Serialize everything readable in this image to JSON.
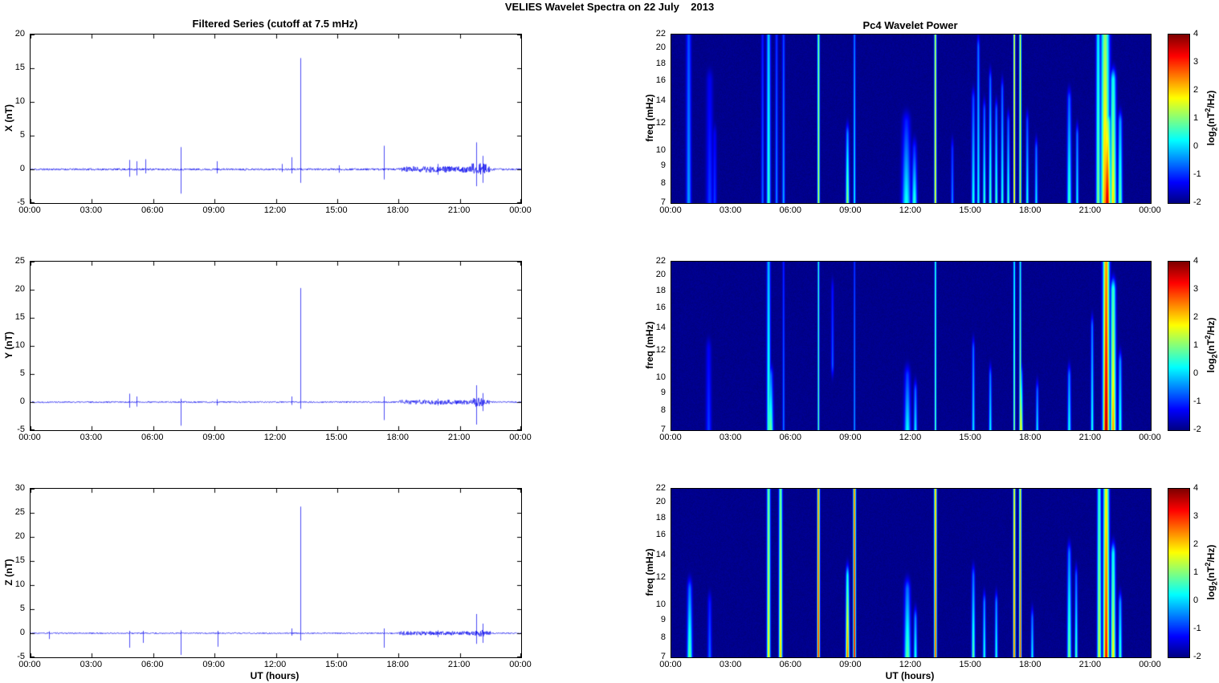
{
  "title": "VELIES Wavelet Spectra on 22 July    2013",
  "left_column": {
    "title": "Filtered Series (cutoff at 7.5 mHz)"
  },
  "right_column": {
    "title": "Pc4 Wavelet Power",
    "colorbar_label": {
      "prefix": "log",
      "sub": "2",
      "mid": "(nT",
      "sup": "2",
      "suffix": "/Hz)"
    }
  },
  "chart_data": [
    {
      "type": "line",
      "component": "X",
      "ylabel": "X (nT)",
      "line_color": "#0000ee",
      "xlim": [
        0,
        24
      ],
      "xticks": [
        "00:00",
        "03:00",
        "06:00",
        "09:00",
        "12:00",
        "15:00",
        "18:00",
        "21:00",
        "00:00"
      ],
      "ylim": [
        -5,
        20
      ],
      "yticks": [
        20,
        15,
        10,
        5,
        0,
        -5
      ],
      "baseline_noise_nT": 0.14,
      "noisy_segments": [
        {
          "start": 18.0,
          "end": 22.5,
          "amp": 0.45
        },
        {
          "start": 21.6,
          "end": 22.3,
          "amp": 0.9
        }
      ],
      "spikes": [
        {
          "t": 4.85,
          "up": 1.4,
          "down": -1.1
        },
        {
          "t": 5.2,
          "up": 1.2,
          "down": -0.9
        },
        {
          "t": 5.6,
          "up": 1.5,
          "down": -0.6
        },
        {
          "t": 7.35,
          "up": 3.3,
          "down": -3.6
        },
        {
          "t": 9.1,
          "up": 1.2,
          "down": -0.6
        },
        {
          "t": 12.3,
          "up": 0.8,
          "down": -0.4
        },
        {
          "t": 12.75,
          "up": 1.8,
          "down": -0.6
        },
        {
          "t": 13.2,
          "up": 16.5,
          "down": -2.0
        },
        {
          "t": 15.1,
          "up": 0.6,
          "down": -0.5
        },
        {
          "t": 17.3,
          "up": 3.5,
          "down": -1.5
        },
        {
          "t": 19.9,
          "up": 0.8,
          "down": -0.8
        },
        {
          "t": 21.8,
          "up": 4.0,
          "down": -2.5
        },
        {
          "t": 22.1,
          "up": 2.0,
          "down": -2.0
        }
      ],
      "seed": 11
    },
    {
      "type": "line",
      "component": "Y",
      "ylabel": "Y (nT)",
      "line_color": "#0000ee",
      "xlim": [
        0,
        24
      ],
      "xticks": [
        "00:00",
        "03:00",
        "06:00",
        "09:00",
        "12:00",
        "15:00",
        "18:00",
        "21:00",
        "00:00"
      ],
      "ylim": [
        -5,
        25
      ],
      "yticks": [
        25,
        20,
        15,
        10,
        5,
        0,
        -5
      ],
      "baseline_noise_nT": 0.12,
      "noisy_segments": [
        {
          "start": 18.0,
          "end": 22.5,
          "amp": 0.4
        },
        {
          "start": 21.6,
          "end": 22.3,
          "amp": 0.8
        }
      ],
      "spikes": [
        {
          "t": 4.85,
          "up": 1.5,
          "down": -1.0
        },
        {
          "t": 5.2,
          "up": 1.0,
          "down": -0.8
        },
        {
          "t": 7.35,
          "up": 0.6,
          "down": -4.2
        },
        {
          "t": 9.1,
          "up": 0.5,
          "down": -0.6
        },
        {
          "t": 12.75,
          "up": 1.0,
          "down": -0.5
        },
        {
          "t": 13.2,
          "up": 20.3,
          "down": -1.2
        },
        {
          "t": 17.3,
          "up": 1.0,
          "down": -3.2
        },
        {
          "t": 19.9,
          "up": 0.6,
          "down": -0.6
        },
        {
          "t": 21.8,
          "up": 3.0,
          "down": -4.0
        },
        {
          "t": 22.1,
          "up": 1.6,
          "down": -1.6
        }
      ],
      "seed": 22
    },
    {
      "type": "line",
      "component": "Z",
      "ylabel": "Z (nT)",
      "xlabel": "UT (hours)",
      "line_color": "#0000ee",
      "xlim": [
        0,
        24
      ],
      "xticks": [
        "00:00",
        "03:00",
        "06:00",
        "09:00",
        "12:00",
        "15:00",
        "18:00",
        "21:00",
        "00:00"
      ],
      "ylim": [
        -5,
        30
      ],
      "yticks": [
        30,
        25,
        20,
        15,
        10,
        5,
        0,
        -5
      ],
      "baseline_noise_nT": 0.12,
      "noisy_segments": [
        {
          "start": 18.0,
          "end": 22.5,
          "amp": 0.4
        },
        {
          "start": 21.7,
          "end": 22.2,
          "amp": 0.7
        }
      ],
      "spikes": [
        {
          "t": 0.9,
          "up": 0.4,
          "down": -1.2
        },
        {
          "t": 4.85,
          "up": 0.5,
          "down": -3.0
        },
        {
          "t": 5.5,
          "up": 0.5,
          "down": -2.0
        },
        {
          "t": 7.35,
          "up": 0.6,
          "down": -4.5
        },
        {
          "t": 9.15,
          "up": 0.5,
          "down": -2.8
        },
        {
          "t": 12.75,
          "up": 1.0,
          "down": -0.5
        },
        {
          "t": 13.2,
          "up": 26.3,
          "down": -1.5
        },
        {
          "t": 17.3,
          "up": 1.0,
          "down": -3.0
        },
        {
          "t": 19.9,
          "up": 0.6,
          "down": -0.8
        },
        {
          "t": 21.8,
          "up": 4.0,
          "down": -2.2
        },
        {
          "t": 22.1,
          "up": 2.0,
          "down": -2.0
        }
      ],
      "seed": 33
    },
    {
      "type": "heatmap",
      "component": "X",
      "title": "Pc4 Wavelet Power",
      "ylabel": "freq (mHz)",
      "yscale": "log",
      "ylim_mHz": [
        7,
        22
      ],
      "yticks": [
        22,
        20,
        18,
        16,
        14,
        12,
        10,
        9,
        8,
        7
      ],
      "xticks": [
        "00:00",
        "03:00",
        "06:00",
        "09:00",
        "12:00",
        "15:00",
        "18:00",
        "21:00",
        "00:00"
      ],
      "clim": [
        -2,
        4
      ],
      "colormap": "jet",
      "colorbar_ticks": [
        4,
        3,
        2,
        1,
        0,
        -1,
        -2
      ],
      "background_value": -2,
      "seed": 44,
      "events": [
        {
          "t": 0.85,
          "w": 0.18,
          "f1": 7,
          "f2": 22,
          "v": -0.3,
          "taper": 0.3
        },
        {
          "t": 1.9,
          "w": 0.25,
          "f1": 7,
          "f2": 16,
          "v": -0.9,
          "taper": 0.4
        },
        {
          "t": 2.15,
          "w": 0.15,
          "f1": 7,
          "f2": 11,
          "v": -0.9
        },
        {
          "t": 4.55,
          "w": 0.1,
          "f1": 7,
          "f2": 22,
          "v": -0.6
        },
        {
          "t": 4.85,
          "w": 0.14,
          "f1": 7,
          "f2": 22,
          "v": 0.6,
          "taper": 0.25
        },
        {
          "t": 5.25,
          "w": 0.1,
          "f1": 7,
          "f2": 22,
          "v": -0.4
        },
        {
          "t": 5.6,
          "w": 0.1,
          "f1": 7,
          "f2": 22,
          "v": -0.2
        },
        {
          "t": 7.35,
          "w": 0.08,
          "f1": 7,
          "f2": 22,
          "v": 1.6,
          "taper": 0.15
        },
        {
          "t": 8.8,
          "w": 0.12,
          "f1": 7,
          "f2": 11,
          "v": 1.3,
          "taper": 0.5
        },
        {
          "t": 9.15,
          "w": 0.08,
          "f1": 7,
          "f2": 22,
          "v": 0.3
        },
        {
          "t": 11.75,
          "w": 0.3,
          "f1": 7,
          "f2": 12,
          "v": 0.4,
          "taper": 0.6
        },
        {
          "t": 12.15,
          "w": 0.18,
          "f1": 7,
          "f2": 10,
          "v": 0.6,
          "taper": 0.6
        },
        {
          "t": 13.2,
          "w": 0.08,
          "f1": 7,
          "f2": 22,
          "v": 1.9,
          "taper": 0.1
        },
        {
          "t": 14.05,
          "w": 0.1,
          "f1": 7,
          "f2": 10,
          "v": -0.4
        },
        {
          "t": 15.1,
          "w": 0.12,
          "f1": 7,
          "f2": 14,
          "v": 0.5,
          "taper": 0.5
        },
        {
          "t": 15.35,
          "w": 0.1,
          "f1": 7,
          "f2": 20,
          "v": 0.4,
          "taper": 0.4
        },
        {
          "t": 15.65,
          "w": 0.1,
          "f1": 7,
          "f2": 13,
          "v": 0.7,
          "taper": 0.5
        },
        {
          "t": 15.95,
          "w": 0.1,
          "f1": 7,
          "f2": 16,
          "v": 0.8,
          "taper": 0.5
        },
        {
          "t": 16.25,
          "w": 0.1,
          "f1": 7,
          "f2": 13,
          "v": 0.8,
          "taper": 0.5
        },
        {
          "t": 16.55,
          "w": 0.1,
          "f1": 7,
          "f2": 15,
          "v": 0.6,
          "taper": 0.5
        },
        {
          "t": 16.85,
          "w": 0.1,
          "f1": 7,
          "f2": 12,
          "v": 0.7,
          "taper": 0.5
        },
        {
          "t": 17.15,
          "w": 0.07,
          "f1": 7,
          "f2": 22,
          "v": 2.2,
          "taper": 0.1
        },
        {
          "t": 17.45,
          "w": 0.07,
          "f1": 7,
          "f2": 22,
          "v": 2.1,
          "taper": 0.1
        },
        {
          "t": 17.8,
          "w": 0.1,
          "f1": 7,
          "f2": 12,
          "v": 0.5,
          "taper": 0.5
        },
        {
          "t": 18.25,
          "w": 0.1,
          "f1": 7,
          "f2": 10,
          "v": 0.2
        },
        {
          "t": 19.9,
          "w": 0.15,
          "f1": 7,
          "f2": 14,
          "v": 0.7,
          "taper": 0.5
        },
        {
          "t": 20.3,
          "w": 0.1,
          "f1": 7,
          "f2": 11,
          "v": 0.3
        },
        {
          "t": 21.35,
          "w": 0.15,
          "f1": 7,
          "f2": 22,
          "v": 1.1,
          "taper": 0.3
        },
        {
          "t": 21.7,
          "w": 0.3,
          "f1": 7,
          "f2": 22,
          "v": 2.4,
          "taper": 0.3
        },
        {
          "t": 21.8,
          "w": 0.25,
          "f1": 7,
          "f2": 12,
          "v": 3.6,
          "taper": 0.4
        },
        {
          "t": 22.1,
          "w": 0.2,
          "f1": 7,
          "f2": 16,
          "v": 2.0,
          "taper": 0.4
        },
        {
          "t": 22.45,
          "w": 0.15,
          "f1": 7,
          "f2": 12,
          "v": 0.9,
          "taper": 0.4
        }
      ]
    },
    {
      "type": "heatmap",
      "component": "Y",
      "ylabel": "freq (mHz)",
      "yscale": "log",
      "ylim_mHz": [
        7,
        22
      ],
      "yticks": [
        22,
        20,
        18,
        16,
        14,
        12,
        10,
        9,
        8,
        7
      ],
      "xticks": [
        "00:00",
        "03:00",
        "06:00",
        "09:00",
        "12:00",
        "15:00",
        "18:00",
        "21:00",
        "00:00"
      ],
      "clim": [
        -2,
        4
      ],
      "colormap": "jet",
      "colorbar_ticks": [
        4,
        3,
        2,
        1,
        0,
        -1,
        -2
      ],
      "background_value": -2,
      "seed": 55,
      "events": [
        {
          "t": 1.85,
          "w": 0.2,
          "f1": 7,
          "f2": 12,
          "v": -0.9
        },
        {
          "t": 4.85,
          "w": 0.13,
          "f1": 7,
          "f2": 22,
          "v": 0.7,
          "taper": 0.3
        },
        {
          "t": 4.95,
          "w": 0.18,
          "f1": 7,
          "f2": 10,
          "v": 1.0,
          "taper": 0.5
        },
        {
          "t": 5.6,
          "w": 0.08,
          "f1": 7,
          "f2": 22,
          "v": -0.5
        },
        {
          "t": 7.35,
          "w": 0.06,
          "f1": 7,
          "f2": 22,
          "v": 0.9,
          "taper": 0.1
        },
        {
          "t": 8.05,
          "w": 0.1,
          "f1": 11,
          "f2": 18,
          "v": -0.7
        },
        {
          "t": 9.15,
          "w": 0.06,
          "f1": 7,
          "f2": 22,
          "v": -0.2
        },
        {
          "t": 11.8,
          "w": 0.22,
          "f1": 7,
          "f2": 10,
          "v": 0.3,
          "taper": 0.5
        },
        {
          "t": 12.2,
          "w": 0.12,
          "f1": 7,
          "f2": 9,
          "v": 0.2
        },
        {
          "t": 13.2,
          "w": 0.06,
          "f1": 7,
          "f2": 22,
          "v": 1.0,
          "taper": 0.1
        },
        {
          "t": 15.1,
          "w": 0.1,
          "f1": 7,
          "f2": 12,
          "v": 0.2
        },
        {
          "t": 15.95,
          "w": 0.1,
          "f1": 7,
          "f2": 10,
          "v": 0.3
        },
        {
          "t": 17.15,
          "w": 0.07,
          "f1": 7,
          "f2": 22,
          "v": 1.3,
          "taper": 0.3
        },
        {
          "t": 17.45,
          "w": 0.07,
          "f1": 7,
          "f2": 22,
          "v": 1.5,
          "taper": 0.3
        },
        {
          "t": 17.5,
          "w": 0.1,
          "f1": 7,
          "f2": 10,
          "v": 1.8,
          "taper": 0.5
        },
        {
          "t": 18.3,
          "w": 0.1,
          "f1": 7,
          "f2": 9,
          "v": 0.2
        },
        {
          "t": 19.9,
          "w": 0.12,
          "f1": 7,
          "f2": 10,
          "v": 0.4
        },
        {
          "t": 21.05,
          "w": 0.1,
          "f1": 7,
          "f2": 14,
          "v": 0.5,
          "taper": 0.4
        },
        {
          "t": 21.75,
          "w": 0.22,
          "f1": 7,
          "f2": 22,
          "v": 3.8,
          "taper": 0.25
        },
        {
          "t": 22.1,
          "w": 0.18,
          "f1": 7,
          "f2": 18,
          "v": 2.4,
          "taper": 0.4
        },
        {
          "t": 22.45,
          "w": 0.12,
          "f1": 7,
          "f2": 11,
          "v": 0.6
        }
      ]
    },
    {
      "type": "heatmap",
      "component": "Z",
      "ylabel": "freq (mHz)",
      "xlabel": "UT (hours)",
      "yscale": "log",
      "ylim_mHz": [
        7,
        22
      ],
      "yticks": [
        22,
        20,
        18,
        16,
        14,
        12,
        10,
        9,
        8,
        7
      ],
      "xticks": [
        "00:00",
        "03:00",
        "06:00",
        "09:00",
        "12:00",
        "15:00",
        "18:00",
        "21:00",
        "00:00"
      ],
      "clim": [
        -2,
        4
      ],
      "colormap": "jet",
      "colorbar_ticks": [
        4,
        3,
        2,
        1,
        0,
        -1,
        -2
      ],
      "background_value": -2,
      "seed": 66,
      "events": [
        {
          "t": 0.9,
          "w": 0.18,
          "f1": 7,
          "f2": 11,
          "v": 0.9,
          "taper": 0.5
        },
        {
          "t": 1.9,
          "w": 0.15,
          "f1": 7,
          "f2": 10,
          "v": -0.6
        },
        {
          "t": 4.85,
          "w": 0.12,
          "f1": 7,
          "f2": 22,
          "v": 1.9,
          "taper": 0.25
        },
        {
          "t": 5.45,
          "w": 0.12,
          "f1": 7,
          "f2": 22,
          "v": 2.2,
          "taper": 0.3
        },
        {
          "t": 7.35,
          "w": 0.09,
          "f1": 7,
          "f2": 22,
          "v": 3.2,
          "taper": 0.15
        },
        {
          "t": 8.8,
          "w": 0.12,
          "f1": 7,
          "f2": 12,
          "v": 2.8,
          "taper": 0.5
        },
        {
          "t": 9.15,
          "w": 0.09,
          "f1": 7,
          "f2": 22,
          "v": 3.5,
          "taper": 0.15
        },
        {
          "t": 11.8,
          "w": 0.22,
          "f1": 7,
          "f2": 11,
          "v": 0.9,
          "taper": 0.5
        },
        {
          "t": 12.2,
          "w": 0.12,
          "f1": 7,
          "f2": 9,
          "v": 0.5
        },
        {
          "t": 13.2,
          "w": 0.09,
          "f1": 7,
          "f2": 22,
          "v": 3.0,
          "taper": 0.15
        },
        {
          "t": 15.1,
          "w": 0.12,
          "f1": 7,
          "f2": 12,
          "v": 0.9,
          "taper": 0.5
        },
        {
          "t": 15.65,
          "w": 0.1,
          "f1": 7,
          "f2": 10,
          "v": 0.5
        },
        {
          "t": 16.25,
          "w": 0.1,
          "f1": 7,
          "f2": 10,
          "v": 0.5
        },
        {
          "t": 17.15,
          "w": 0.08,
          "f1": 7,
          "f2": 22,
          "v": 2.8,
          "taper": 0.2
        },
        {
          "t": 17.45,
          "w": 0.08,
          "f1": 7,
          "f2": 22,
          "v": 3.0,
          "taper": 0.2
        },
        {
          "t": 18.05,
          "w": 0.1,
          "f1": 7,
          "f2": 9,
          "v": 0.3
        },
        {
          "t": 19.9,
          "w": 0.14,
          "f1": 7,
          "f2": 14,
          "v": 1.1,
          "taper": 0.5
        },
        {
          "t": 20.25,
          "w": 0.1,
          "f1": 7,
          "f2": 12,
          "v": 0.8,
          "taper": 0.5
        },
        {
          "t": 21.4,
          "w": 0.14,
          "f1": 7,
          "f2": 22,
          "v": 1.6,
          "taper": 0.3
        },
        {
          "t": 21.75,
          "w": 0.2,
          "f1": 7,
          "f2": 22,
          "v": 3.3,
          "taper": 0.3
        },
        {
          "t": 22.1,
          "w": 0.16,
          "f1": 7,
          "f2": 14,
          "v": 1.9,
          "taper": 0.4
        },
        {
          "t": 22.45,
          "w": 0.12,
          "f1": 7,
          "f2": 10,
          "v": 0.7
        }
      ]
    }
  ]
}
